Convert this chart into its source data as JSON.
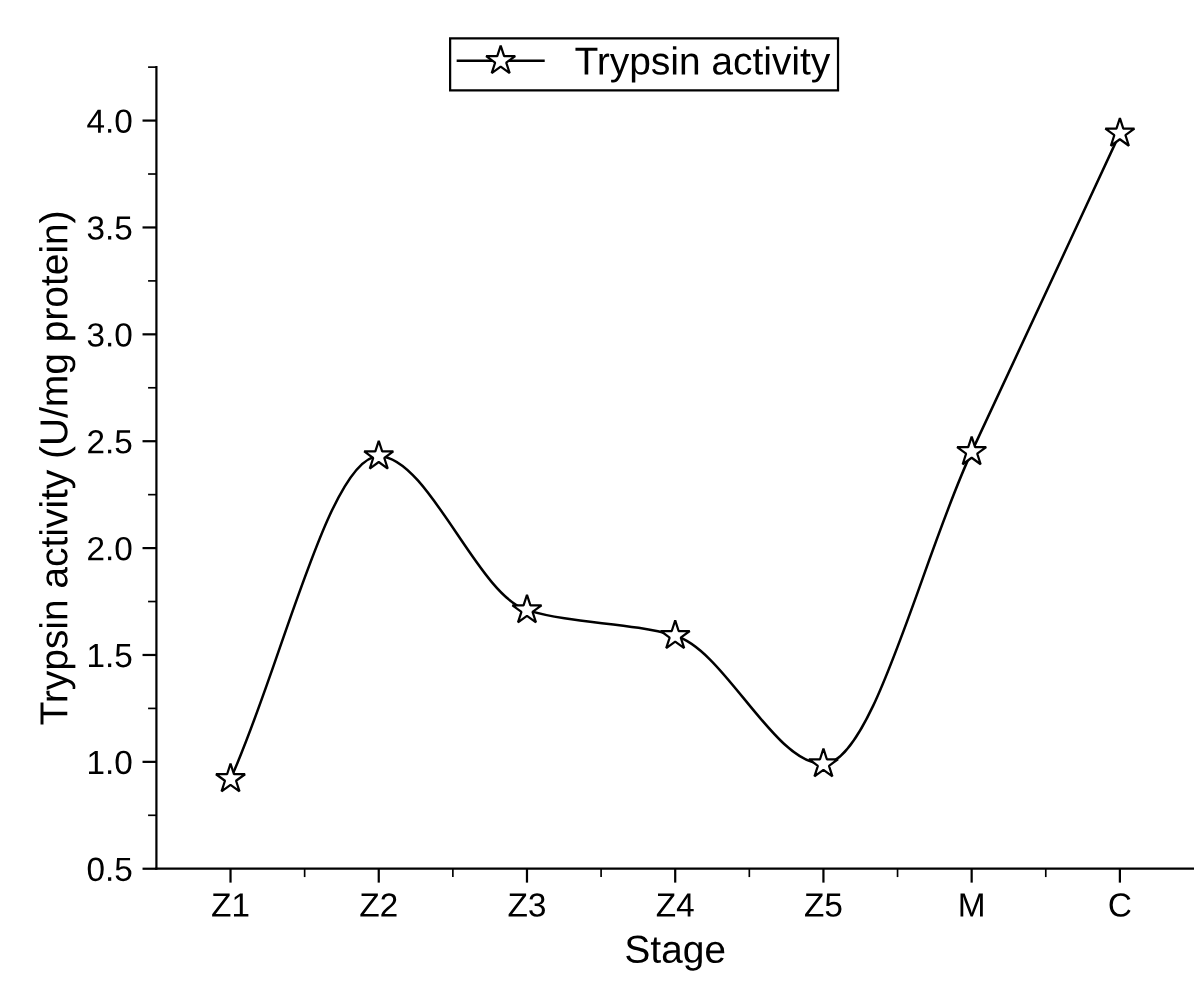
{
  "chart_data": {
    "type": "line",
    "xlabel": "Stage",
    "ylabel": "Trypsin activity (U/mg protein)",
    "categories": [
      "Z1",
      "Z2",
      "Z3",
      "Z4",
      "Z5",
      "M",
      "C"
    ],
    "series": [
      {
        "name": "Trypsin activity",
        "color": "#000000",
        "values": [
          0.92,
          2.43,
          1.71,
          1.59,
          0.99,
          2.45,
          3.94
        ]
      }
    ],
    "ylim": [
      0.5,
      4.25
    ],
    "yticks": [
      0.5,
      {
        "value": 1,
        "label": "1.0"
      },
      1.5,
      {
        "value": 2,
        "label": "2.0"
      },
      2.5,
      {
        "value": 3,
        "label": "3.0"
      },
      3.5,
      {
        "value": 4,
        "label": "4.0"
      }
    ],
    "marker": "star",
    "line_style": "solid",
    "legend": "top",
    "grid": false
  }
}
